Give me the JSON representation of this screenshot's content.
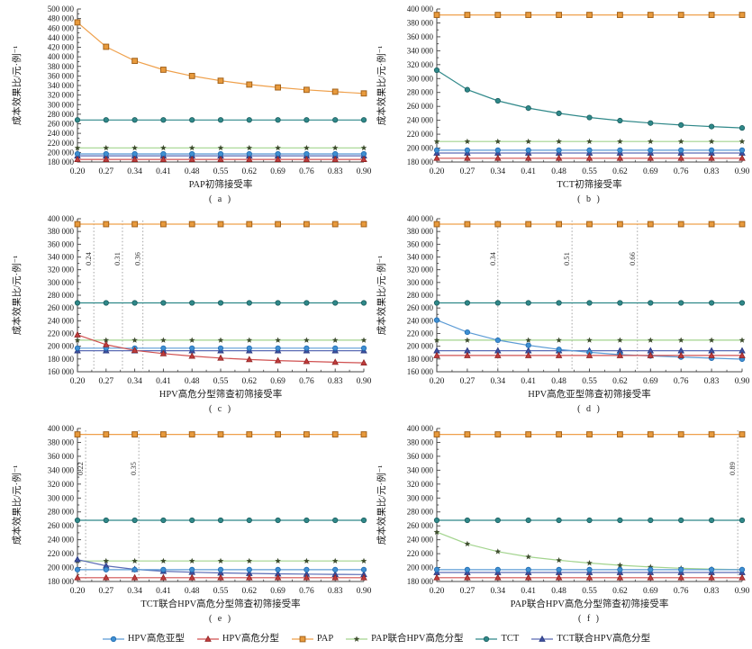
{
  "figure": {
    "ylabel": "成本效果比/元·例⁻¹",
    "accent_colors": {
      "blue": "#5B9BD5",
      "red": "#D05050",
      "orange": "#EFA04B",
      "green": "#A3D48E",
      "teal": "#2F8889",
      "navy": "#5A6BB5"
    }
  },
  "legend": [
    {
      "label": "HPV高危亚型",
      "marker": "circle",
      "line_color": "#5B9BD5",
      "fill": "#3F8FD2",
      "edge": "#1F6BB0"
    },
    {
      "label": "HPV高危分型",
      "marker": "triangle",
      "line_color": "#D05050",
      "fill": "#C03C3C",
      "edge": "#902525"
    },
    {
      "label": "PAP",
      "marker": "square",
      "line_color": "#EFA04B",
      "fill": "#E89A3C",
      "edge": "#A3621A"
    },
    {
      "label": "PAP联合HPV高危分型",
      "marker": "star",
      "line_color": "#A3D48E",
      "fill": "#3E4E2E",
      "edge": "#3E4E2E"
    },
    {
      "label": "TCT",
      "marker": "circle",
      "line_color": "#2F8889",
      "fill": "#2F8889",
      "edge": "#1C5F60"
    },
    {
      "label": "TCT联合HPV高危分型",
      "marker": "triangle",
      "line_color": "#5A6BB5",
      "fill": "#3D4F9E",
      "edge": "#2A3A80"
    }
  ],
  "chart_data": [
    {
      "type": "line",
      "panel_label": "( a )",
      "xlabel": "PAP初筛接受率",
      "ylim": [
        180000,
        500000
      ],
      "ytick_step": 20000,
      "x": [
        0.2,
        0.27,
        0.34,
        0.41,
        0.48,
        0.55,
        0.62,
        0.69,
        0.76,
        0.83,
        0.9
      ],
      "vlines": [],
      "series": [
        {
          "name": "PAP",
          "values": [
            472000,
            421000,
            391500,
            373000,
            360000,
            350000,
            342000,
            336000,
            331000,
            327000,
            323500
          ]
        },
        {
          "name": "TCT",
          "values": [
            268000,
            268000,
            268000,
            268000,
            268000,
            268000,
            268000,
            268000,
            268000,
            268000,
            268000
          ]
        },
        {
          "name": "PAP联合HPV高危分型",
          "values": [
            209500,
            209500,
            209500,
            209500,
            209500,
            209500,
            209500,
            209500,
            209500,
            209500,
            209500
          ]
        },
        {
          "name": "TCT联合HPV高危分型",
          "values": [
            193000,
            193000,
            193000,
            193000,
            193000,
            193000,
            193000,
            193000,
            193000,
            193000,
            193000
          ]
        },
        {
          "name": "HPV高危亚型",
          "values": [
            197000,
            197000,
            197000,
            197000,
            197000,
            197000,
            197000,
            197000,
            197000,
            197000,
            197000
          ]
        },
        {
          "name": "HPV高危分型",
          "values": [
            185500,
            185500,
            185500,
            185500,
            185500,
            185500,
            185500,
            185500,
            185500,
            185500,
            185500
          ]
        }
      ]
    },
    {
      "type": "line",
      "panel_label": "( b )",
      "xlabel": "TCT初筛接受率",
      "ylim": [
        180000,
        400000
      ],
      "ytick_step": 20000,
      "x": [
        0.2,
        0.27,
        0.34,
        0.41,
        0.48,
        0.55,
        0.62,
        0.69,
        0.76,
        0.83,
        0.9
      ],
      "vlines": [],
      "series": [
        {
          "name": "PAP",
          "values": [
            391500,
            391500,
            391500,
            391500,
            391500,
            391500,
            391500,
            391500,
            391500,
            391500,
            391500
          ]
        },
        {
          "name": "TCT",
          "values": [
            312000,
            284000,
            268000,
            257500,
            250000,
            244000,
            239500,
            236000,
            233200,
            231000,
            229000
          ]
        },
        {
          "name": "PAP联合HPV高危分型",
          "values": [
            209500,
            209500,
            209500,
            209500,
            209500,
            209500,
            209500,
            209500,
            209500,
            209500,
            209500
          ]
        },
        {
          "name": "TCT联合HPV高危分型",
          "values": [
            193000,
            193000,
            193000,
            193000,
            193000,
            193000,
            193000,
            193000,
            193000,
            193000,
            193000
          ]
        },
        {
          "name": "HPV高危亚型",
          "values": [
            197000,
            197000,
            197000,
            197000,
            197000,
            197000,
            197000,
            197000,
            197000,
            197000,
            197000
          ]
        },
        {
          "name": "HPV高危分型",
          "values": [
            185500,
            185500,
            185500,
            185500,
            185500,
            185500,
            185500,
            185500,
            185500,
            185500,
            185500
          ]
        }
      ]
    },
    {
      "type": "line",
      "panel_label": "( c )",
      "xlabel": "HPV高危分型筛查初筛接受率",
      "ylim": [
        160000,
        400000
      ],
      "ytick_step": 20000,
      "x": [
        0.2,
        0.27,
        0.34,
        0.41,
        0.48,
        0.55,
        0.62,
        0.69,
        0.76,
        0.83,
        0.9
      ],
      "vlines": [
        {
          "x": 0.24,
          "label": "0.24"
        },
        {
          "x": 0.31,
          "label": "0.31"
        },
        {
          "x": 0.36,
          "label": "0.36"
        }
      ],
      "series": [
        {
          "name": "PAP",
          "values": [
            391500,
            391500,
            391500,
            391500,
            391500,
            391500,
            391500,
            391500,
            391500,
            391500,
            391500
          ]
        },
        {
          "name": "TCT",
          "values": [
            268000,
            268000,
            268000,
            268000,
            268000,
            268000,
            268000,
            268000,
            268000,
            268000,
            268000
          ]
        },
        {
          "name": "PAP联合HPV高危分型",
          "values": [
            209500,
            209500,
            209500,
            209500,
            209500,
            209500,
            209500,
            209500,
            209500,
            209500,
            209500
          ]
        },
        {
          "name": "TCT联合HPV高危分型",
          "values": [
            193000,
            193000,
            193000,
            193000,
            193000,
            193000,
            193000,
            193000,
            193000,
            193000,
            193000
          ]
        },
        {
          "name": "HPV高危亚型",
          "values": [
            197000,
            197000,
            197000,
            197000,
            197000,
            197000,
            197000,
            197000,
            197000,
            197000,
            197000
          ]
        },
        {
          "name": "HPV高危分型",
          "values": [
            218000,
            202500,
            193500,
            188500,
            184500,
            181500,
            179200,
            177500,
            176200,
            175000,
            174000
          ]
        }
      ]
    },
    {
      "type": "line",
      "panel_label": "( d )",
      "xlabel": "HPV高危亚型筛查初筛接受率",
      "ylim": [
        160000,
        400000
      ],
      "ytick_step": 20000,
      "x": [
        0.2,
        0.27,
        0.34,
        0.41,
        0.48,
        0.55,
        0.62,
        0.69,
        0.76,
        0.83,
        0.9
      ],
      "vlines": [
        {
          "x": 0.34,
          "label": "0.34"
        },
        {
          "x": 0.51,
          "label": "0.51"
        },
        {
          "x": 0.66,
          "label": "0.66"
        }
      ],
      "series": [
        {
          "name": "PAP",
          "values": [
            391500,
            391500,
            391500,
            391500,
            391500,
            391500,
            391500,
            391500,
            391500,
            391500,
            391500
          ]
        },
        {
          "name": "TCT",
          "values": [
            268000,
            268000,
            268000,
            268000,
            268000,
            268000,
            268000,
            268000,
            268000,
            268000,
            268000
          ]
        },
        {
          "name": "PAP联合HPV高危分型",
          "values": [
            209500,
            209500,
            209500,
            209500,
            209500,
            209500,
            209500,
            209500,
            209500,
            209500,
            209500
          ]
        },
        {
          "name": "TCT联合HPV高危分型",
          "values": [
            193000,
            193000,
            193000,
            193000,
            193000,
            193000,
            193000,
            193000,
            193000,
            193000,
            193000
          ]
        },
        {
          "name": "HPV高危亚型",
          "values": [
            241000,
            222000,
            209500,
            201500,
            195000,
            190500,
            186800,
            184800,
            183000,
            181300,
            179800
          ]
        },
        {
          "name": "HPV高危分型",
          "values": [
            185500,
            185500,
            185500,
            185500,
            185500,
            185500,
            185500,
            185500,
            185500,
            185500,
            185500
          ]
        }
      ]
    },
    {
      "type": "line",
      "panel_label": "( e )",
      "xlabel": "TCT联合HPV高危分型筛查初筛接受率",
      "ylim": [
        180000,
        400000
      ],
      "ytick_step": 20000,
      "x": [
        0.2,
        0.27,
        0.34,
        0.41,
        0.48,
        0.55,
        0.62,
        0.69,
        0.76,
        0.83,
        0.9
      ],
      "vlines": [
        {
          "x": 0.22,
          "label": "0.22"
        },
        {
          "x": 0.35,
          "label": "0.35"
        }
      ],
      "series": [
        {
          "name": "PAP",
          "values": [
            391500,
            391500,
            391500,
            391500,
            391500,
            391500,
            391500,
            391500,
            391500,
            391500,
            391500
          ]
        },
        {
          "name": "TCT",
          "values": [
            268000,
            268000,
            268000,
            268000,
            268000,
            268000,
            268000,
            268000,
            268000,
            268000,
            268000
          ]
        },
        {
          "name": "PAP联合HPV高危分型",
          "values": [
            209500,
            209500,
            209500,
            209500,
            209500,
            209500,
            209500,
            209500,
            209500,
            209500,
            209500
          ]
        },
        {
          "name": "TCT联合HPV高危分型",
          "values": [
            211500,
            202500,
            197500,
            194800,
            193300,
            192300,
            191600,
            191000,
            190600,
            190200,
            190000
          ]
        },
        {
          "name": "HPV高危亚型",
          "values": [
            197000,
            197000,
            197000,
            197000,
            197000,
            197000,
            197000,
            197000,
            197000,
            197000,
            197000
          ]
        },
        {
          "name": "HPV高危分型",
          "values": [
            185500,
            185500,
            185500,
            185500,
            185500,
            185500,
            185500,
            185500,
            185500,
            185500,
            185500
          ]
        }
      ]
    },
    {
      "type": "line",
      "panel_label": "( f )",
      "xlabel": "PAP联合HPV高危分型筛查初筛接受率",
      "ylim": [
        180000,
        400000
      ],
      "ytick_step": 20000,
      "x": [
        0.2,
        0.27,
        0.34,
        0.41,
        0.48,
        0.55,
        0.62,
        0.69,
        0.76,
        0.83,
        0.9
      ],
      "vlines": [
        {
          "x": 0.89,
          "label": "0.89"
        }
      ],
      "series": [
        {
          "name": "PAP",
          "values": [
            391500,
            391500,
            391500,
            391500,
            391500,
            391500,
            391500,
            391500,
            391500,
            391500,
            391500
          ]
        },
        {
          "name": "TCT",
          "values": [
            268000,
            268000,
            268000,
            268000,
            268000,
            268000,
            268000,
            268000,
            268000,
            268000,
            268000
          ]
        },
        {
          "name": "PAP联合HPV高危分型",
          "values": [
            251000,
            234000,
            223000,
            215500,
            210500,
            206500,
            203300,
            200800,
            199000,
            197800,
            196900
          ]
        },
        {
          "name": "TCT联合HPV高危分型",
          "values": [
            193000,
            193000,
            193000,
            193000,
            193000,
            193000,
            193000,
            193000,
            193000,
            193000,
            193000
          ]
        },
        {
          "name": "HPV高危亚型",
          "values": [
            197000,
            197000,
            197000,
            197000,
            197000,
            197000,
            197000,
            197000,
            197000,
            197000,
            197000
          ]
        },
        {
          "name": "HPV高危分型",
          "values": [
            185500,
            185500,
            185500,
            185500,
            185500,
            185500,
            185500,
            185500,
            185500,
            185500,
            185500
          ]
        }
      ]
    }
  ]
}
